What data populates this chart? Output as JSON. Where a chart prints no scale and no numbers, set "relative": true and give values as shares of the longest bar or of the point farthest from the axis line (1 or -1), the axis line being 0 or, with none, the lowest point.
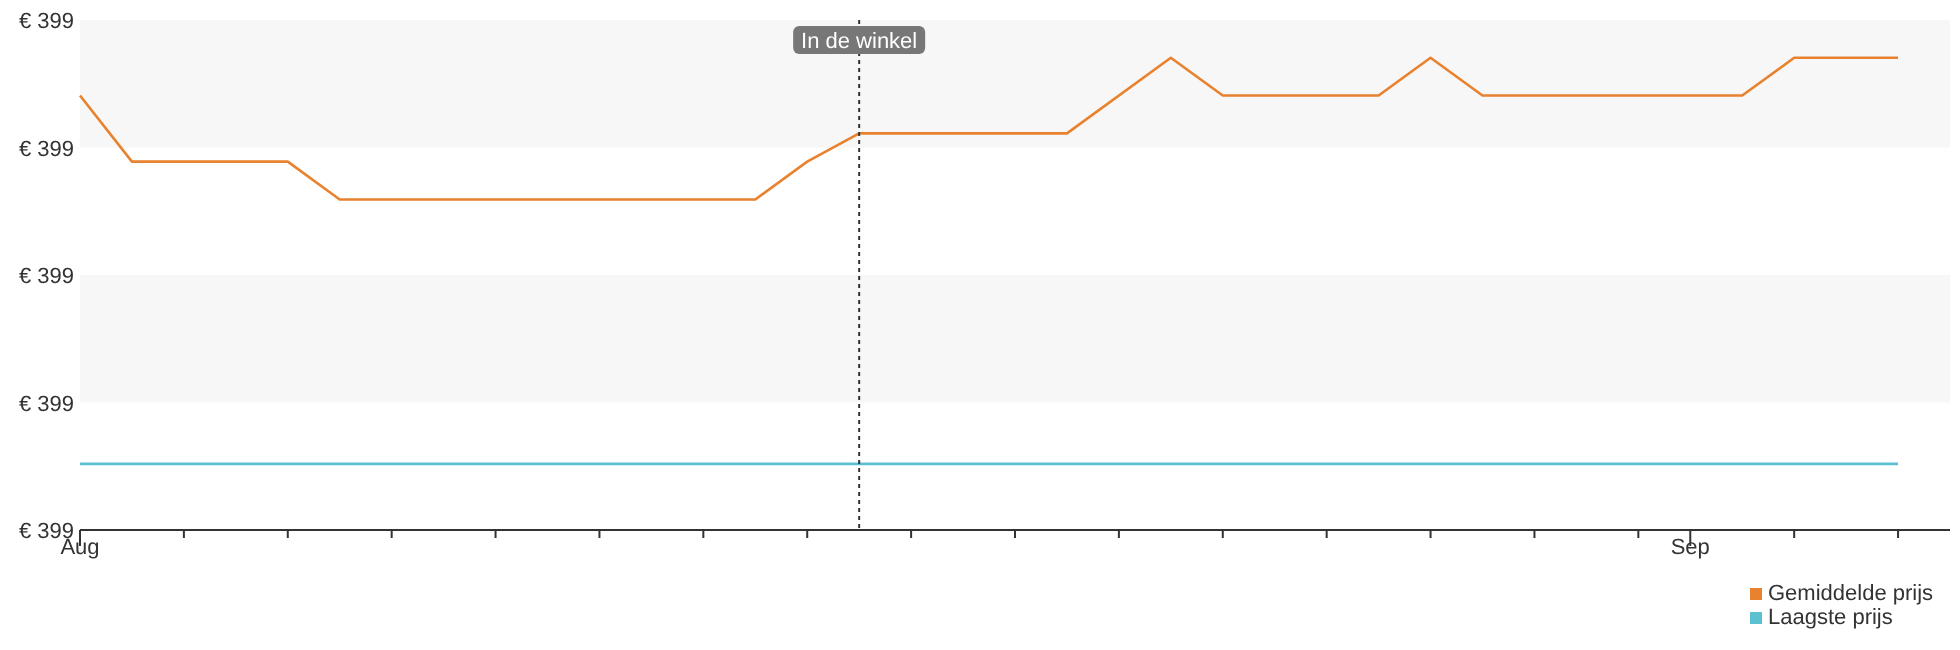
{
  "chart_data": {
    "type": "line",
    "relative": true,
    "annotations": [
      "€ 399",
      "€ 399",
      "€ 399",
      "€ 399",
      "€ 399"
    ],
    "xlim": [
      "--08-01",
      "--09-06"
    ],
    "xticks": [
      {
        "value": "--08-01",
        "label": "Aug"
      },
      {
        "value": "--08-03",
        "label": null
      },
      {
        "value": "--08-05",
        "label": null
      },
      {
        "value": "--08-07",
        "label": null
      },
      {
        "value": "--08-09",
        "label": null
      },
      {
        "value": "--08-11",
        "label": null
      },
      {
        "value": "--08-13",
        "label": null
      },
      {
        "value": "--08-15",
        "label": null
      },
      {
        "value": "--08-17",
        "label": null
      },
      {
        "value": "--08-19",
        "label": null
      },
      {
        "value": "--08-21",
        "label": null
      },
      {
        "value": "--08-23",
        "label": null
      },
      {
        "value": "--08-25",
        "label": null
      },
      {
        "value": "--08-27",
        "label": null
      },
      {
        "value": "--08-29",
        "label": null
      },
      {
        "value": "--08-31",
        "label": null
      },
      {
        "value": "--09-01",
        "label": "Sep"
      },
      {
        "value": "--09-03",
        "label": null
      },
      {
        "value": "--09-05",
        "label": null
      }
    ],
    "bands": [
      {
        "axis": "y",
        "from": 0.27,
        "to": 0.54,
        "color": "#f7f7f7"
      },
      {
        "axis": "y",
        "from": 0.81,
        "to": 1.08,
        "color": "#f7f7f7"
      }
    ],
    "legend": "bottom right",
    "line_style": "solid",
    "ref_lines": [
      {
        "axis": "x",
        "value": "--08-16",
        "label": "In de winkel",
        "line_style": "dotted",
        "color": "#333333"
      }
    ],
    "series": [
      {
        "name": "Gemiddelde prijs",
        "color": "#e8822e",
        "x": [
          "--08-01",
          "--08-02",
          "--08-05",
          "--08-06",
          "--08-14",
          "--08-15",
          "--08-16",
          "--08-20",
          "--08-22",
          "--08-23",
          "--08-26",
          "--08-27",
          "--08-28",
          "--09-02",
          "--09-03",
          "--09-05"
        ],
        "values": [
          0.92,
          0.78,
          0.78,
          0.7,
          0.7,
          0.78,
          0.84,
          0.84,
          1,
          0.92,
          0.92,
          1,
          0.92,
          0.92,
          1,
          1
        ]
      },
      {
        "name": "Laagste prijs",
        "color": "#5bc0cf",
        "x": [
          "--08-01",
          "--09-05"
        ],
        "values": [
          0.14,
          0.14
        ]
      }
    ]
  }
}
